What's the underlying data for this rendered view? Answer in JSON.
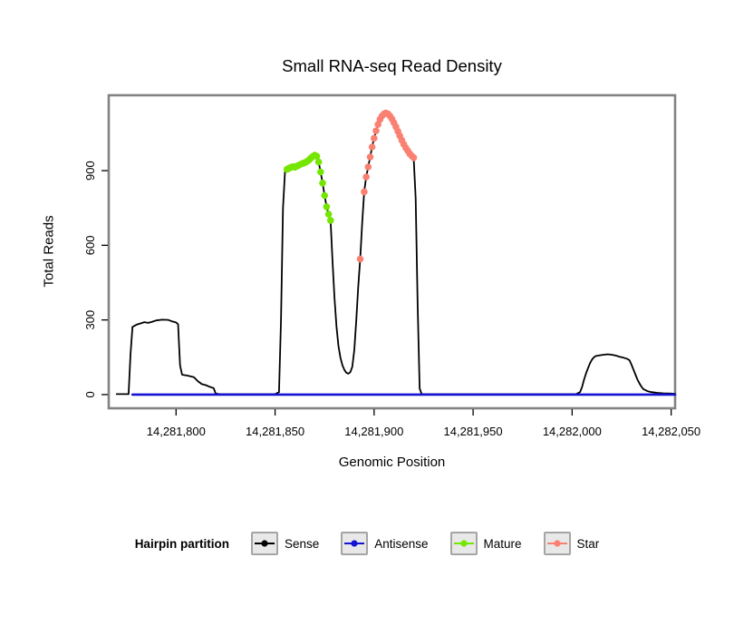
{
  "figure": {
    "title": "Small RNA-seq Read Density",
    "xlabel": "Genomic Position",
    "ylabel": "Total Reads"
  },
  "legend": {
    "title": "Hairpin partition",
    "entries": [
      {
        "label": "Sense",
        "color": "#000000"
      },
      {
        "label": "Antisense",
        "color": "#1414d2"
      },
      {
        "label": "Mature",
        "color": "#74e600"
      },
      {
        "label": "Star",
        "color": "#fa8072"
      }
    ]
  },
  "chart_data": {
    "type": "line",
    "title": "Small RNA-seq Read Density",
    "xlabel": "Genomic Position",
    "ylabel": "Total Reads",
    "grid": false,
    "legend_title": "Hairpin partition",
    "legend_position": "bottom",
    "xlim": [
      14281766,
      14282052
    ],
    "ylim": [
      -55,
      1203
    ],
    "xticks": [
      14281800,
      14281850,
      14281900,
      14281950,
      14282000,
      14282050
    ],
    "xtick_labels": [
      "14,281,800",
      "14,281,850",
      "14,281,900",
      "14,281,950",
      "14,282,000",
      "14,282,050"
    ],
    "yticks": [
      0,
      300,
      600,
      900
    ],
    "ytick_labels": [
      "0",
      "300",
      "600",
      "900"
    ],
    "series": [
      {
        "name": "Sense",
        "type": "line",
        "color": "#000000",
        "width": 1.8,
        "points": [
          [
            14281770,
            2
          ],
          [
            14281776,
            2
          ],
          [
            14281777,
            160
          ],
          [
            14281778,
            272
          ],
          [
            14281780,
            281
          ],
          [
            14281782,
            286
          ],
          [
            14281784,
            291
          ],
          [
            14281786,
            288
          ],
          [
            14281788,
            293
          ],
          [
            14281790,
            298
          ],
          [
            14281793,
            301
          ],
          [
            14281796,
            300
          ],
          [
            14281798,
            294
          ],
          [
            14281800,
            290
          ],
          [
            14281801,
            283
          ],
          [
            14281802,
            118
          ],
          [
            14281803,
            80
          ],
          [
            14281806,
            76
          ],
          [
            14281809,
            70
          ],
          [
            14281811,
            54
          ],
          [
            14281813,
            42
          ],
          [
            14281815,
            38
          ],
          [
            14281817,
            31
          ],
          [
            14281819,
            26
          ],
          [
            14281820,
            4
          ],
          [
            14281822,
            2
          ],
          [
            14281850,
            2
          ],
          [
            14281852,
            10
          ],
          [
            14281853,
            300
          ],
          [
            14281854,
            750
          ],
          [
            14281855,
            895
          ],
          [
            14281856,
            905
          ],
          [
            14281857,
            910
          ],
          [
            14281858,
            913
          ],
          [
            14281859,
            916
          ],
          [
            14281860,
            914
          ],
          [
            14281861,
            918
          ],
          [
            14281862,
            922
          ],
          [
            14281863,
            926
          ],
          [
            14281864,
            929
          ],
          [
            14281865,
            932
          ],
          [
            14281866,
            936
          ],
          [
            14281867,
            942
          ],
          [
            14281868,
            950
          ],
          [
            14281869,
            957
          ],
          [
            14281870,
            962
          ],
          [
            14281871,
            958
          ],
          [
            14281872,
            935
          ],
          [
            14281873,
            895
          ],
          [
            14281874,
            850
          ],
          [
            14281875,
            800
          ],
          [
            14281876,
            755
          ],
          [
            14281877,
            725
          ],
          [
            14281878,
            700
          ],
          [
            14281879,
            540
          ],
          [
            14281880,
            390
          ],
          [
            14281881,
            275
          ],
          [
            14281882,
            195
          ],
          [
            14281883,
            148
          ],
          [
            14281884,
            118
          ],
          [
            14281885,
            99
          ],
          [
            14281886,
            88
          ],
          [
            14281887,
            84
          ],
          [
            14281888,
            90
          ],
          [
            14281889,
            112
          ],
          [
            14281890,
            180
          ],
          [
            14281891,
            300
          ],
          [
            14281892,
            432
          ],
          [
            14281893,
            545
          ],
          [
            14281894,
            690
          ],
          [
            14281895,
            815
          ],
          [
            14281896,
            875
          ],
          [
            14281897,
            915
          ],
          [
            14281898,
            955
          ],
          [
            14281899,
            995
          ],
          [
            14281900,
            1030
          ],
          [
            14281901,
            1060
          ],
          [
            14281902,
            1086
          ],
          [
            14281903,
            1106
          ],
          [
            14281904,
            1120
          ],
          [
            14281905,
            1128
          ],
          [
            14281906,
            1132
          ],
          [
            14281907,
            1128
          ],
          [
            14281908,
            1120
          ],
          [
            14281909,
            1108
          ],
          [
            14281910,
            1093
          ],
          [
            14281911,
            1076
          ],
          [
            14281912,
            1058
          ],
          [
            14281913,
            1040
          ],
          [
            14281914,
            1022
          ],
          [
            14281915,
            1006
          ],
          [
            14281916,
            992
          ],
          [
            14281917,
            980
          ],
          [
            14281918,
            968
          ],
          [
            14281919,
            959
          ],
          [
            14281920,
            952
          ],
          [
            14281921,
            790
          ],
          [
            14281922,
            360
          ],
          [
            14281923,
            25
          ],
          [
            14281924,
            2
          ],
          [
            14282002,
            2
          ],
          [
            14282004,
            10
          ],
          [
            14282005,
            30
          ],
          [
            14282006,
            60
          ],
          [
            14282007,
            85
          ],
          [
            14282008,
            105
          ],
          [
            14282009,
            125
          ],
          [
            14282010,
            140
          ],
          [
            14282011,
            150
          ],
          [
            14282012,
            155
          ],
          [
            14282014,
            158
          ],
          [
            14282016,
            160
          ],
          [
            14282018,
            162
          ],
          [
            14282020,
            160
          ],
          [
            14282022,
            157
          ],
          [
            14282024,
            152
          ],
          [
            14282026,
            148
          ],
          [
            14282028,
            143
          ],
          [
            14282029,
            138
          ],
          [
            14282030,
            120
          ],
          [
            14282031,
            100
          ],
          [
            14282032,
            80
          ],
          [
            14282033,
            60
          ],
          [
            14282034,
            45
          ],
          [
            14282035,
            32
          ],
          [
            14282036,
            22
          ],
          [
            14282038,
            14
          ],
          [
            14282040,
            10
          ],
          [
            14282043,
            7
          ],
          [
            14282046,
            5
          ],
          [
            14282050,
            4
          ],
          [
            14282052,
            3
          ]
        ]
      },
      {
        "name": "Antisense",
        "type": "line",
        "color": "#1414d2",
        "width": 2.6,
        "points": [
          [
            14281778,
            0
          ],
          [
            14282052,
            0
          ]
        ]
      },
      {
        "name": "Mature",
        "type": "scatter",
        "color": "#74e600",
        "points": [
          [
            14281856,
            905
          ],
          [
            14281857,
            910
          ],
          [
            14281858,
            913
          ],
          [
            14281859,
            916
          ],
          [
            14281860,
            914
          ],
          [
            14281861,
            918
          ],
          [
            14281862,
            922
          ],
          [
            14281863,
            926
          ],
          [
            14281864,
            929
          ],
          [
            14281865,
            932
          ],
          [
            14281866,
            936
          ],
          [
            14281867,
            942
          ],
          [
            14281868,
            950
          ],
          [
            14281869,
            957
          ],
          [
            14281870,
            962
          ],
          [
            14281871,
            958
          ],
          [
            14281872,
            935
          ],
          [
            14281873,
            895
          ],
          [
            14281874,
            850
          ],
          [
            14281875,
            800
          ],
          [
            14281876,
            755
          ],
          [
            14281877,
            725
          ],
          [
            14281878,
            700
          ]
        ]
      },
      {
        "name": "Star",
        "type": "scatter",
        "color": "#fa8072",
        "points": [
          [
            14281893,
            545
          ],
          [
            14281895,
            815
          ],
          [
            14281896,
            875
          ],
          [
            14281897,
            915
          ],
          [
            14281898,
            955
          ],
          [
            14281899,
            995
          ],
          [
            14281900,
            1030
          ],
          [
            14281901,
            1060
          ],
          [
            14281902,
            1086
          ],
          [
            14281903,
            1106
          ],
          [
            14281904,
            1120
          ],
          [
            14281905,
            1128
          ],
          [
            14281906,
            1132
          ],
          [
            14281907,
            1128
          ],
          [
            14281908,
            1120
          ],
          [
            14281909,
            1108
          ],
          [
            14281910,
            1093
          ],
          [
            14281911,
            1076
          ],
          [
            14281912,
            1058
          ],
          [
            14281913,
            1040
          ],
          [
            14281914,
            1022
          ],
          [
            14281915,
            1006
          ],
          [
            14281916,
            992
          ],
          [
            14281917,
            980
          ],
          [
            14281918,
            968
          ],
          [
            14281919,
            959
          ],
          [
            14281920,
            952
          ]
        ]
      }
    ]
  }
}
